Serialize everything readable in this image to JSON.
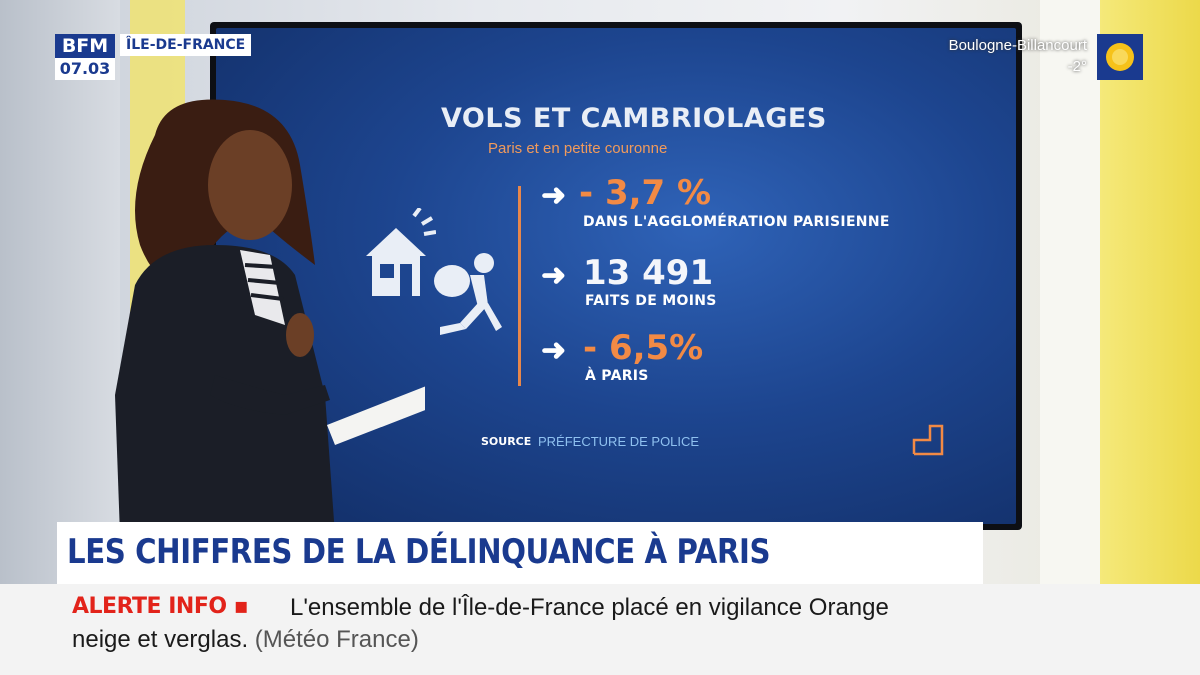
{
  "channel": {
    "logo": "BFM",
    "time": "07.03",
    "region": "ÎLE-DE-FRANCE"
  },
  "weather": {
    "city": "Boulogne-Billancourt",
    "temperature": "-2°",
    "icon": "sun-icon"
  },
  "screen": {
    "title": "VOLS ET CAMBRIOLAGES",
    "subtitle": "Paris et en petite couronne",
    "stats": [
      {
        "value": "- 3,7 %",
        "caption": "DANS L'AGGLOMÉRATION PARISIENNE",
        "color": "#f28a45"
      },
      {
        "value": "13 491",
        "caption": "FAITS DE MOINS",
        "color": "#f4f6fb"
      },
      {
        "value": "- 6,5%",
        "caption": "À PARIS",
        "color": "#f28a45"
      }
    ],
    "source_label": "SOURCE",
    "source_value": "PRÉFECTURE DE POLICE",
    "icons": [
      "house-icon",
      "burglar-running-icon",
      "arrow-right-icon"
    ]
  },
  "headline": "LES CHIFFRES  DE LA DÉLINQUANCE À PARIS",
  "ticker": {
    "label": "ALERTE INFO",
    "line1": "L'ensemble de l'Île-de-France placé en vigilance Orange",
    "line2": "neige et verglas.",
    "source": "(Météo France)"
  },
  "colors": {
    "brand_blue": "#1a3a8f",
    "alert_red": "#e2231a",
    "accent_orange": "#f28a45"
  }
}
